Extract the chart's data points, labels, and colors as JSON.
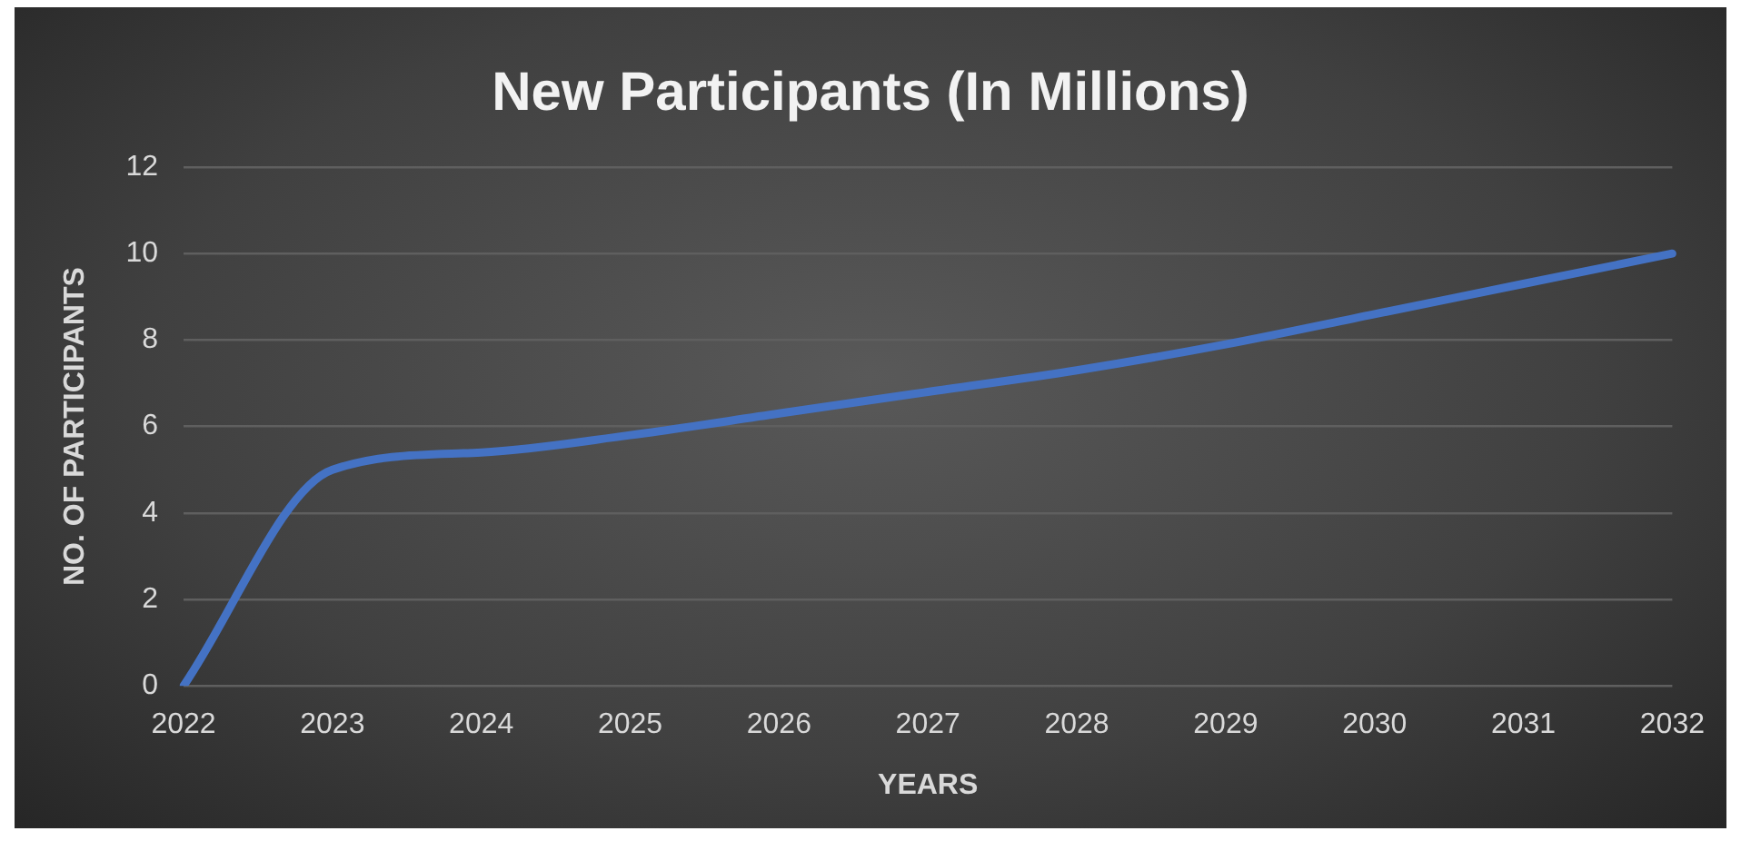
{
  "chart_data": {
    "type": "line",
    "title": "New Participants (In Millions)",
    "xlabel": "YEARS",
    "ylabel": "NO. OF PARTICIPANTS",
    "categories": [
      "2022",
      "2023",
      "2024",
      "2025",
      "2026",
      "2027",
      "2028",
      "2029",
      "2030",
      "2031",
      "2032"
    ],
    "series": [
      {
        "color": "#4472c4",
        "values": [
          0,
          5,
          5.4,
          5.8,
          6.3,
          6.8,
          7.3,
          7.9,
          8.6,
          9.3,
          10
        ]
      }
    ],
    "ylim": [
      0,
      12
    ],
    "yticks": [
      0,
      2,
      4,
      6,
      8,
      10,
      12
    ],
    "grid": "y",
    "legend": false,
    "marker": "none",
    "line_style": "solid"
  }
}
